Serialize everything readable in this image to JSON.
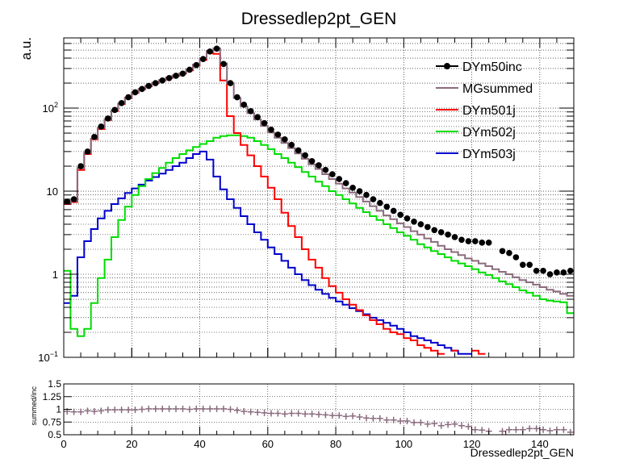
{
  "chart_data": [
    {
      "type": "step-line",
      "title": "Dressedlep2pt_GEN",
      "ylabel": "a.u.",
      "xlabel": "",
      "log_y": true,
      "xlim": [
        0,
        150
      ],
      "ylim": [
        0.1,
        700
      ],
      "grid": true,
      "legend_position": "top-right",
      "x_ticks": [
        0,
        20,
        40,
        60,
        80,
        100,
        120,
        140
      ],
      "y_ticks": [
        {
          "v": 0.1,
          "mant": "10",
          "exp": "−1"
        },
        {
          "v": 1,
          "mant": "1",
          "exp": ""
        },
        {
          "v": 10,
          "mant": "10",
          "exp": ""
        },
        {
          "v": 100,
          "mant": "10",
          "exp": "2"
        }
      ],
      "bin_width": 2,
      "series": [
        {
          "name": "DYm50inc",
          "style": "points",
          "color": "#000000",
          "values": [
            7.5,
            8,
            20,
            30,
            45,
            60,
            75,
            95,
            115,
            135,
            155,
            170,
            185,
            200,
            215,
            230,
            245,
            260,
            290,
            330,
            390,
            480,
            520,
            340,
            200,
            135,
            110,
            92,
            78,
            66,
            55,
            48,
            42,
            36,
            31,
            27,
            23,
            20.5,
            18,
            16,
            14,
            12.5,
            11,
            10,
            9,
            8,
            7.2,
            6.5,
            5.8,
            5.2,
            4.7,
            4.3,
            4,
            3.7,
            3.4,
            3.2,
            3,
            2.8,
            2.6,
            2.5,
            2.5,
            2.4,
            2.4,
            null,
            1.9,
            1.8,
            1.6,
            1.3,
            1.3,
            1.1,
            1.1,
            1.0,
            1.05,
            1.05,
            1.1
          ]
        },
        {
          "name": "MGsummed",
          "style": "step",
          "color": "#8b6b7e",
          "values": [
            7.2,
            7.6,
            19,
            29,
            43,
            58,
            74,
            94,
            114,
            134,
            154,
            170,
            186,
            202,
            218,
            233,
            248,
            263,
            292,
            335,
            395,
            485,
            525,
            345,
            200,
            132,
            105,
            87,
            73,
            61,
            51,
            44,
            38,
            33,
            28.5,
            24.5,
            21,
            18.5,
            16,
            14,
            12.3,
            10.8,
            9.6,
            8.5,
            7.5,
            6.6,
            5.8,
            5.1,
            4.6,
            4.1,
            3.7,
            3.3,
            3.0,
            2.7,
            2.45,
            2.2,
            2.0,
            1.85,
            1.7,
            1.55,
            1.45,
            1.35,
            1.25,
            1.15,
            1.07,
            1.0,
            0.92,
            0.85,
            0.8,
            0.75,
            0.7,
            0.65,
            0.62,
            0.58,
            0.55
          ]
        },
        {
          "name": "DYm501j",
          "style": "step",
          "color": "#ff0000",
          "values": [
            7,
            7.4,
            18,
            28,
            42,
            56,
            72,
            92,
            112,
            132,
            152,
            168,
            184,
            200,
            215,
            230,
            245,
            260,
            285,
            325,
            380,
            460,
            450,
            215,
            80,
            50,
            36,
            27,
            20,
            15,
            11,
            8,
            5.5,
            3.8,
            2.8,
            2.0,
            1.5,
            1.2,
            0.9,
            0.72,
            0.6,
            0.5,
            0.43,
            0.37,
            0.32,
            0.28,
            0.25,
            0.22,
            0.2,
            0.19,
            0.17,
            0.16,
            0.14,
            0.13,
            0.12,
            0.11,
            0.1,
            0.12,
            0.1,
            null,
            0.12,
            0.11,
            null,
            null,
            null,
            null,
            null,
            null,
            null,
            null,
            null,
            null,
            null,
            null,
            null
          ]
        },
        {
          "name": "DYm502j",
          "style": "step",
          "color": "#00dd00",
          "values": [
            1.1,
            0.22,
            0.18,
            0.22,
            0.45,
            0.9,
            1.5,
            2.8,
            4.5,
            6.5,
            9,
            11.5,
            14,
            16.5,
            19,
            22,
            25,
            28,
            31,
            34,
            37,
            40,
            44,
            46,
            47,
            47,
            46,
            44,
            40,
            36,
            32,
            28,
            25,
            22,
            19.5,
            17,
            15,
            13,
            11.5,
            10,
            9,
            8,
            7.1,
            6.3,
            5.6,
            5.0,
            4.5,
            4.0,
            3.6,
            3.2,
            2.9,
            2.6,
            2.3,
            2.1,
            1.9,
            1.75,
            1.6,
            1.45,
            1.35,
            1.25,
            1.15,
            1.05,
            0.98,
            0.9,
            0.82,
            0.76,
            0.7,
            0.64,
            0.6,
            0.55,
            0.5,
            0.48,
            0.47,
            0.46,
            0.34
          ]
        },
        {
          "name": "DYm503j",
          "style": "step",
          "color": "#0000cc",
          "values": [
            0.45,
            0.55,
            1.6,
            2.5,
            3.5,
            4.7,
            5.8,
            7.0,
            8.2,
            9.5,
            10.8,
            12.0,
            13.4,
            14.8,
            16.3,
            18.0,
            20.0,
            22.0,
            25.0,
            28.0,
            30.0,
            24.0,
            15.0,
            10.5,
            8.0,
            6.3,
            5.0,
            4.0,
            3.2,
            2.6,
            2.1,
            1.75,
            1.45,
            1.2,
            1.0,
            0.85,
            0.74,
            0.65,
            0.58,
            0.52,
            0.47,
            0.43,
            0.39,
            0.36,
            0.33,
            0.3,
            0.28,
            0.26,
            0.24,
            0.22,
            0.2,
            0.18,
            0.17,
            0.16,
            0.15,
            0.14,
            0.13,
            0.12,
            0.11,
            0.11,
            0.1,
            null,
            null,
            null,
            null,
            null,
            null,
            null,
            null,
            null,
            null,
            null,
            null,
            null,
            null
          ]
        }
      ]
    },
    {
      "type": "scatter",
      "ylabel": "summed/inc",
      "xlabel": "Dressedlep2pt_GEN",
      "xlim": [
        0,
        150
      ],
      "ylim": [
        0.5,
        1.5
      ],
      "grid": true,
      "x_ticks": [
        0,
        20,
        40,
        60,
        80,
        100,
        120,
        140
      ],
      "y_ticks": [
        {
          "v": 0.5,
          "label": "0.5"
        },
        {
          "v": 0.75,
          "label": "0.75"
        },
        {
          "v": 1.0,
          "label": "1"
        },
        {
          "v": 1.25,
          "label": "1.25"
        },
        {
          "v": 1.5,
          "label": "1.5"
        }
      ],
      "series": [
        {
          "name": "summed/inc",
          "color": "#8b6b7e",
          "x": [
            1,
            3,
            5,
            7,
            9,
            11,
            13,
            15,
            17,
            19,
            21,
            23,
            25,
            27,
            29,
            31,
            33,
            35,
            37,
            39,
            41,
            43,
            45,
            47,
            49,
            51,
            53,
            55,
            57,
            59,
            61,
            63,
            65,
            67,
            69,
            71,
            73,
            75,
            77,
            79,
            81,
            83,
            85,
            87,
            89,
            91,
            93,
            95,
            97,
            99,
            101,
            103,
            105,
            107,
            109,
            111,
            113,
            115,
            117,
            119,
            121,
            123,
            125,
            129,
            131,
            133,
            135,
            137,
            139,
            141,
            143,
            145,
            147,
            149
          ],
          "y": [
            0.96,
            0.95,
            0.95,
            0.97,
            0.96,
            0.97,
            0.99,
            0.99,
            0.99,
            0.99,
            0.99,
            1.0,
            1.01,
            1.01,
            1.01,
            1.01,
            1.01,
            1.01,
            1.0,
            1.01,
            1.01,
            1.01,
            1.01,
            1.01,
            1.0,
            0.98,
            0.96,
            0.95,
            0.94,
            0.93,
            0.92,
            0.92,
            0.91,
            0.92,
            0.92,
            0.91,
            0.91,
            0.9,
            0.89,
            0.88,
            0.88,
            0.86,
            0.87,
            0.85,
            0.83,
            0.82,
            0.82,
            0.79,
            0.79,
            0.77,
            0.77,
            0.74,
            0.74,
            0.71,
            0.72,
            0.68,
            0.7,
            0.71,
            0.68,
            0.66,
            0.6,
            0.59,
            0.57,
            0.57,
            0.6,
            0.6,
            0.6,
            0.62,
            0.62,
            0.6,
            0.58,
            0.6,
            0.6,
            0.55
          ]
        }
      ]
    }
  ]
}
